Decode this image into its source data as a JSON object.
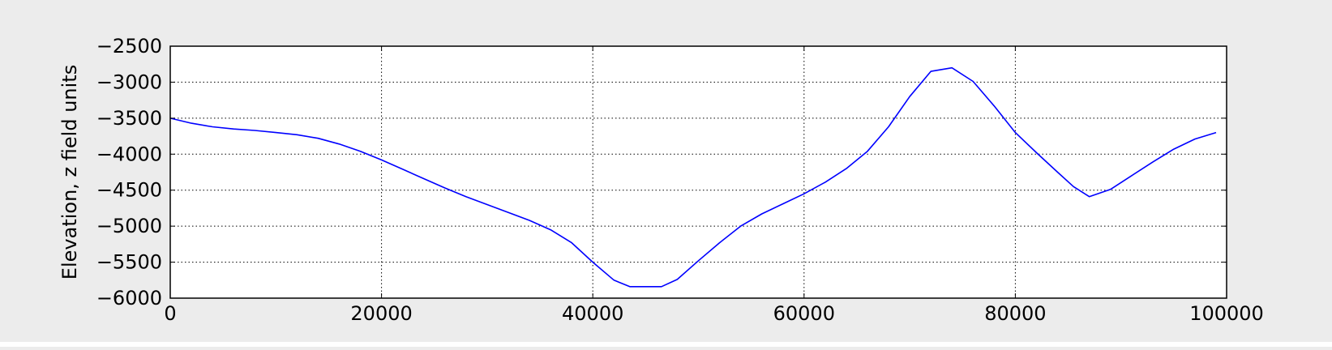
{
  "chart_data": {
    "type": "line",
    "title": "",
    "xlabel": "",
    "ylabel": "Elevation, z field units",
    "xlim": [
      0,
      100000
    ],
    "ylim": [
      -6000,
      -2500
    ],
    "xticks": [
      0,
      20000,
      40000,
      60000,
      80000,
      100000
    ],
    "xtick_labels": [
      "0",
      "20000",
      "40000",
      "60000",
      "80000",
      "100000"
    ],
    "yticks": [
      -2500,
      -3000,
      -3500,
      -4000,
      -4500,
      -5000,
      -5500,
      -6000
    ],
    "ytick_labels": [
      "−2500",
      "−3000",
      "−3500",
      "−4000",
      "−4500",
      "−5000",
      "−5500",
      "−6000"
    ],
    "grid": true,
    "grid_style": "dotted",
    "legend": "none",
    "series": [
      {
        "color": "#0000ff",
        "x": [
          0,
          2000,
          4000,
          6000,
          8000,
          10000,
          12000,
          14000,
          16000,
          18000,
          20000,
          22000,
          24000,
          26000,
          28000,
          30000,
          32000,
          34000,
          36000,
          38000,
          40000,
          42000,
          43500,
          46500,
          48000,
          50000,
          52000,
          54000,
          56000,
          58000,
          60000,
          62000,
          64000,
          66000,
          68000,
          70000,
          72000,
          74000,
          76000,
          78000,
          80000,
          82000,
          84000,
          85500,
          87000,
          89000,
          91000,
          93000,
          95000,
          97000,
          99000
        ],
        "y": [
          -3500,
          -3570,
          -3620,
          -3650,
          -3670,
          -3700,
          -3730,
          -3780,
          -3860,
          -3960,
          -4080,
          -4210,
          -4340,
          -4470,
          -4590,
          -4700,
          -4810,
          -4920,
          -5050,
          -5230,
          -5500,
          -5750,
          -5840,
          -5840,
          -5740,
          -5480,
          -5230,
          -5000,
          -4830,
          -4690,
          -4550,
          -4390,
          -4200,
          -3960,
          -3620,
          -3200,
          -2850,
          -2800,
          -2990,
          -3330,
          -3700,
          -3980,
          -4250,
          -4450,
          -4590,
          -4490,
          -4300,
          -4110,
          -3930,
          -3790,
          -3700
        ]
      }
    ]
  }
}
